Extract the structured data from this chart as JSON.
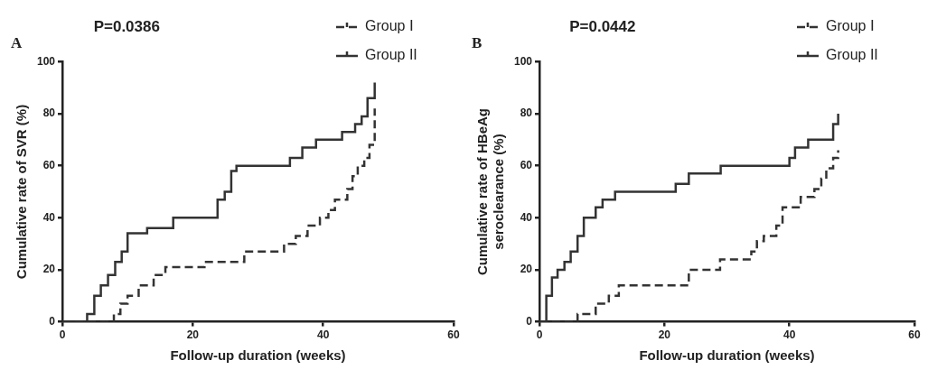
{
  "chart_data": [
    {
      "type": "step",
      "title": "A",
      "annotations": [
        "P=0.0386"
      ],
      "xlabel": "Follow-up duration (weeks)",
      "ylabel": "Cumulative rate of SVR (%)",
      "xlim": [
        0,
        60
      ],
      "xticks": [
        0,
        20,
        40,
        60
      ],
      "ylim": [
        0,
        100
      ],
      "yticks": [
        0,
        20,
        40,
        60,
        80,
        100
      ],
      "grid": false,
      "legend": "top right",
      "series": [
        {
          "name": "Group Ⅰ",
          "color": "#333333",
          "line_style": "dashed",
          "x": [
            0,
            7.9,
            8.9,
            10,
            11.7,
            14,
            15.8,
            21.8,
            27.9,
            34,
            35.8,
            37.6,
            39.5,
            40.8,
            41.8,
            43.7,
            44.5,
            45.3,
            46.3,
            47.1,
            47.9,
            47.9
          ],
          "values": [
            0,
            3,
            7,
            10,
            14,
            18,
            21,
            23,
            27,
            30,
            33,
            37,
            40,
            43,
            47,
            51,
            56,
            60,
            63,
            68,
            72,
            82
          ]
        },
        {
          "name": "Group II",
          "color": "#333333",
          "line_style": "solid",
          "x": [
            0,
            3.8,
            4.9,
            5.9,
            7,
            8.1,
            9.1,
            10,
            13,
            17,
            23.8,
            24.9,
            25.9,
            26.7,
            34.9,
            36.8,
            38.9,
            42.9,
            44.9,
            45.9,
            46.8,
            47.9
          ],
          "values": [
            0,
            3,
            10,
            14,
            18,
            23,
            27,
            34,
            36,
            40,
            47,
            50,
            58,
            60,
            63,
            67,
            70,
            73,
            76,
            79,
            86,
            92
          ]
        }
      ]
    },
    {
      "type": "step",
      "title": "B",
      "annotations": [
        "P=0.0442"
      ],
      "xlabel": "Follow-up duration (weeks)",
      "ylabel": "Cumulative rate of HBeAg\nseroclearance (%)",
      "xlim": [
        0,
        60
      ],
      "xticks": [
        0,
        20,
        40,
        60
      ],
      "ylim": [
        0,
        100
      ],
      "yticks": [
        0,
        20,
        40,
        60,
        80,
        100
      ],
      "grid": false,
      "legend": "top right",
      "series": [
        {
          "name": "Group Ⅰ",
          "color": "#333333",
          "line_style": "dashed",
          "x": [
            0,
            6.1,
            9,
            11.1,
            12.7,
            23.9,
            28.9,
            33.9,
            34.8,
            35.9,
            37.9,
            38.9,
            41.8,
            44,
            45.1,
            45.9,
            47,
            47.8
          ],
          "values": [
            0,
            3,
            7,
            10,
            14,
            20,
            24,
            27,
            31,
            33,
            37,
            44,
            48,
            51,
            55,
            59,
            63,
            66
          ]
        },
        {
          "name": "Group II",
          "color": "#333333",
          "line_style": "solid",
          "x": [
            0,
            1.1,
            2,
            2.9,
            4,
            5,
            6.1,
            7.1,
            9,
            10.1,
            12.1,
            21.8,
            23.9,
            29,
            40,
            40.9,
            43,
            47,
            47.8
          ],
          "values": [
            0,
            10,
            17,
            20,
            23,
            27,
            33,
            40,
            44,
            47,
            50,
            53,
            57,
            60,
            63,
            67,
            70,
            76,
            80
          ]
        }
      ]
    }
  ]
}
